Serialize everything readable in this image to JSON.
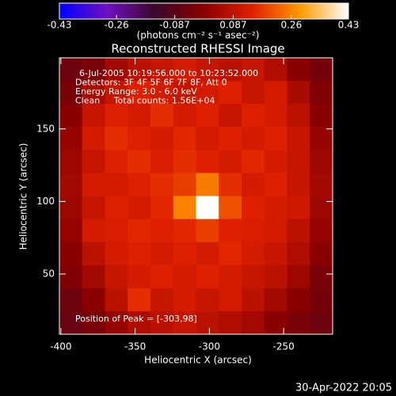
{
  "chart_data": {
    "type": "heatmap",
    "title": "Reconstructed RHESSI Image",
    "colorbar_label": "(photons cm⁻² s⁻¹ asec⁻²)",
    "xlabel": "Heliocentric X (arcsec)",
    "ylabel": "Heliocentric Y (arcsec)",
    "annotations": [
      "6-Jul-2005 10:19:56.000 to 10:23:52.000",
      "Detectors: 3F 4F 5F 6F 7F 8F, Att 0",
      "Energy Range: 3.0 - 6.0 keV",
      "Clean     Total counts: 1.56E+04"
    ],
    "peak_label": "Position of Peak = [-303,98]",
    "footer": "30-Apr-2022 20:05",
    "xlim": [
      -401,
      -217
    ],
    "ylim": [
      8.5,
      199
    ],
    "xticks": [
      -400,
      -350,
      -300,
      -250
    ],
    "yticks": [
      50,
      100,
      150
    ],
    "clim": [
      -0.43,
      0.43
    ],
    "cticks": [
      -0.43,
      -0.26,
      -0.087,
      0.087,
      0.26,
      0.43
    ],
    "colors": [
      "#0000ff",
      "#7010c0",
      "#3a0828",
      "#8a0000",
      "#e02000",
      "#ff9a00",
      "#ffffff"
    ],
    "z": [
      [
        -0.05,
        -0.03,
        0.04,
        0.08,
        0.1,
        0.12,
        0.1,
        0.08,
        0.1,
        0.06,
        0.0,
        -0.04
      ],
      [
        -0.03,
        0.05,
        0.1,
        0.14,
        0.12,
        0.1,
        0.12,
        0.14,
        0.1,
        0.12,
        0.05,
        -0.02
      ],
      [
        0.0,
        0.1,
        0.14,
        0.12,
        0.16,
        0.12,
        0.14,
        0.1,
        0.14,
        0.12,
        0.08,
        0.0
      ],
      [
        0.02,
        0.12,
        0.16,
        0.14,
        0.12,
        0.15,
        0.12,
        0.14,
        0.12,
        0.14,
        0.1,
        0.02
      ],
      [
        0.03,
        0.1,
        0.14,
        0.16,
        0.13,
        0.16,
        0.14,
        0.12,
        0.15,
        0.12,
        0.1,
        0.03
      ],
      [
        0.04,
        0.12,
        0.12,
        0.14,
        0.16,
        0.18,
        0.25,
        0.16,
        0.12,
        0.14,
        0.1,
        0.04
      ],
      [
        0.03,
        0.1,
        0.14,
        0.12,
        0.15,
        0.26,
        0.43,
        0.2,
        0.14,
        0.12,
        0.11,
        0.03
      ],
      [
        0.02,
        0.12,
        0.13,
        0.15,
        0.14,
        0.15,
        0.18,
        0.14,
        0.13,
        0.12,
        0.08,
        0.02
      ],
      [
        0.0,
        0.08,
        0.12,
        0.14,
        0.12,
        0.14,
        0.12,
        0.15,
        0.12,
        0.1,
        0.06,
        0.0
      ],
      [
        -0.02,
        0.04,
        0.1,
        0.12,
        0.14,
        0.12,
        0.14,
        0.12,
        0.1,
        0.08,
        0.03,
        -0.03
      ],
      [
        -0.05,
        0.0,
        0.08,
        0.16,
        0.1,
        0.12,
        0.1,
        0.12,
        0.08,
        0.04,
        0.0,
        -0.04
      ],
      [
        -0.06,
        -0.03,
        0.02,
        0.06,
        0.08,
        0.1,
        0.08,
        0.06,
        0.04,
        0.0,
        -0.03,
        -0.05
      ]
    ]
  }
}
